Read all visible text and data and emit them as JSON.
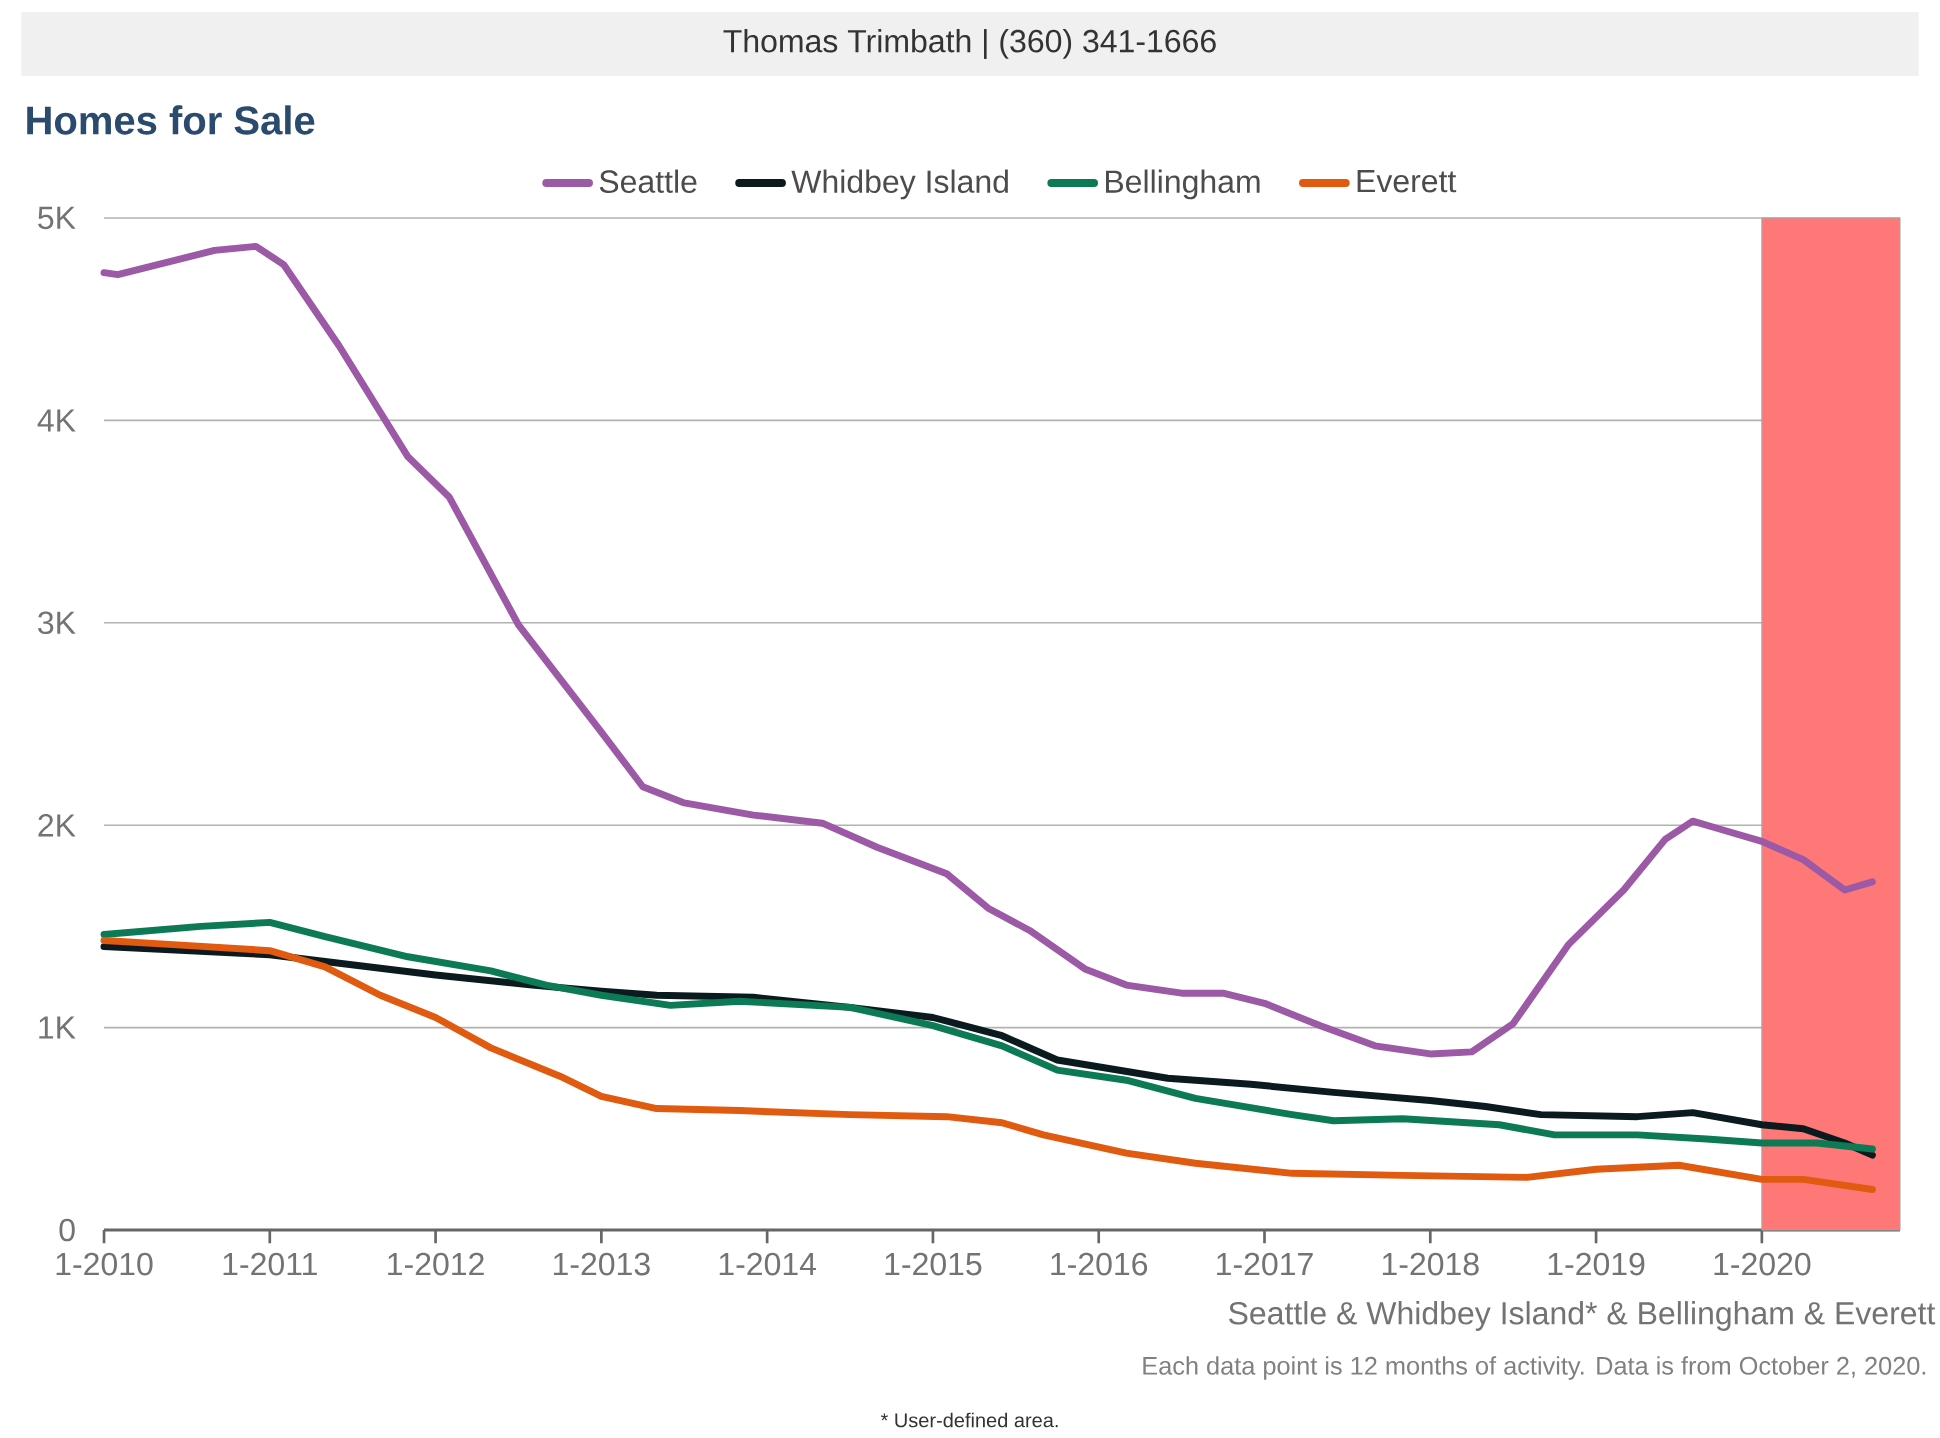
{
  "chart_data": {
    "type": "line",
    "title": "Homes for Sale",
    "annotations": [
      "Thomas Trimbath | (360) 341-1666",
      "Seattle & Whidbey Island* & Bellingham & Everett",
      "Each data point is 12 months of activity. Data is from October 2, 2020.",
      "* User-defined area."
    ],
    "xlim": [
      "2010-01",
      "2020-11"
    ],
    "ylim": [
      0,
      5000
    ],
    "xticks": [
      {
        "value": "2010-01",
        "label": "1-2010"
      },
      {
        "value": "2011-01",
        "label": "1-2011"
      },
      {
        "value": "2012-01",
        "label": "1-2012"
      },
      {
        "value": "2013-01",
        "label": "1-2013"
      },
      {
        "value": "2014-01",
        "label": "1-2014"
      },
      {
        "value": "2015-01",
        "label": "1-2015"
      },
      {
        "value": "2016-01",
        "label": "1-2016"
      },
      {
        "value": "2017-01",
        "label": "1-2017"
      },
      {
        "value": "2018-01",
        "label": "1-2018"
      },
      {
        "value": "2019-01",
        "label": "1-2019"
      },
      {
        "value": "2020-01",
        "label": "1-2020"
      }
    ],
    "yticks": [
      0,
      {
        "value": 1000,
        "label": "1K"
      },
      {
        "value": 2000,
        "label": "2K"
      },
      {
        "value": 3000,
        "label": "3K"
      },
      {
        "value": 4000,
        "label": "4K"
      },
      {
        "value": 5000,
        "label": "5K"
      }
    ],
    "grid": "y",
    "legend": "top",
    "line_style": "solid",
    "marker": "none",
    "bands": [
      {
        "axis": "x",
        "from": "2020-01",
        "to": "2020-11",
        "color": "#ff7878"
      }
    ],
    "series": [
      {
        "name": "Seattle",
        "color": "#9b59a6",
        "x": [
          "2010-01",
          "2010-02",
          "2010-09",
          "2010-12",
          "2011-02",
          "2011-06",
          "2011-11",
          "2012-02",
          "2012-07",
          "2013-01",
          "2013-04",
          "2013-07",
          "2013-12",
          "2014-05",
          "2014-09",
          "2015-02",
          "2015-05",
          "2015-08",
          "2015-12",
          "2016-03",
          "2016-07",
          "2016-10",
          "2017-01",
          "2017-05",
          "2017-09",
          "2018-01",
          "2018-04",
          "2018-07",
          "2018-11",
          "2019-03",
          "2019-06",
          "2019-08",
          "2019-10",
          "2020-01",
          "2020-04",
          "2020-07",
          "2020-09"
        ],
        "values": [
          4730,
          4720,
          4840,
          4860,
          4770,
          4370,
          3820,
          3620,
          2990,
          2460,
          2190,
          2110,
          2050,
          2010,
          1890,
          1760,
          1590,
          1480,
          1290,
          1210,
          1170,
          1170,
          1120,
          1010,
          910,
          870,
          880,
          1020,
          1410,
          1680,
          1930,
          2020,
          1980,
          1920,
          1830,
          1680,
          1720
        ]
      },
      {
        "name": "Whidbey Island",
        "color": "#0b1a1e",
        "x": [
          "2010-01",
          "2011-01",
          "2011-07",
          "2012-01",
          "2012-08",
          "2013-01",
          "2013-05",
          "2013-12",
          "2014-07",
          "2015-01",
          "2015-06",
          "2015-10",
          "2016-06",
          "2016-12",
          "2017-06",
          "2018-01",
          "2018-05",
          "2018-09",
          "2019-04",
          "2019-08",
          "2020-01",
          "2020-04",
          "2020-07",
          "2020-09"
        ],
        "values": [
          1400,
          1360,
          1310,
          1260,
          1210,
          1180,
          1160,
          1150,
          1100,
          1050,
          960,
          840,
          750,
          720,
          680,
          640,
          610,
          570,
          560,
          580,
          520,
          500,
          430,
          370
        ]
      },
      {
        "name": "Bellingham",
        "color": "#0b7a55",
        "x": [
          "2010-01",
          "2010-08",
          "2011-01",
          "2011-05",
          "2011-11",
          "2012-05",
          "2012-09",
          "2013-01",
          "2013-06",
          "2013-11",
          "2014-07",
          "2015-01",
          "2015-06",
          "2015-10",
          "2016-03",
          "2016-08",
          "2017-03",
          "2017-06",
          "2017-11",
          "2018-06",
          "2018-10",
          "2019-04",
          "2019-09",
          "2020-01",
          "2020-05",
          "2020-09"
        ],
        "values": [
          1460,
          1500,
          1520,
          1450,
          1350,
          1280,
          1210,
          1160,
          1110,
          1130,
          1100,
          1010,
          910,
          790,
          740,
          650,
          570,
          540,
          550,
          520,
          470,
          470,
          450,
          430,
          430,
          400
        ]
      },
      {
        "name": "Everett",
        "color": "#e05a10",
        "x": [
          "2010-01",
          "2010-06",
          "2011-01",
          "2011-05",
          "2011-09",
          "2012-01",
          "2012-05",
          "2012-10",
          "2013-01",
          "2013-05",
          "2013-11",
          "2014-07",
          "2015-02",
          "2015-06",
          "2015-09",
          "2016-03",
          "2016-08",
          "2017-03",
          "2017-11",
          "2018-08",
          "2019-01",
          "2019-07",
          "2020-01",
          "2020-04",
          "2020-09"
        ],
        "values": [
          1430,
          1410,
          1380,
          1300,
          1160,
          1050,
          900,
          760,
          660,
          600,
          590,
          570,
          560,
          530,
          470,
          380,
          330,
          280,
          270,
          260,
          300,
          320,
          250,
          250,
          200
        ]
      }
    ]
  }
}
